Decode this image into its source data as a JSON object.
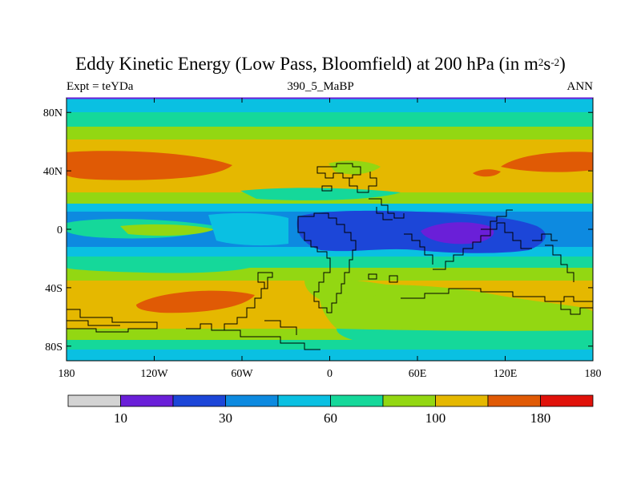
{
  "title": {
    "main": "Eddy Kinetic Energy (Low Pass, Bloomfield) at 200 hPa (in m",
    "sup1": "2",
    "mid": "s",
    "sup2": "-2",
    "end": ")"
  },
  "subtitle": {
    "left": "Expt = teYDa",
    "center": "390_5_MaBP",
    "right": "ANN"
  },
  "axes": {
    "lat_ticks": [
      {
        "lat": 80,
        "label": "80N"
      },
      {
        "lat": 40,
        "label": "40N"
      },
      {
        "lat": 0,
        "label": "0"
      },
      {
        "lat": -40,
        "label": "40S"
      },
      {
        "lat": -80,
        "label": "80S"
      }
    ],
    "lon_ticks": [
      {
        "lon": -180,
        "label": "180"
      },
      {
        "lon": -120,
        "label": "120W"
      },
      {
        "lon": -60,
        "label": "60W"
      },
      {
        "lon": 0,
        "label": "0"
      },
      {
        "lon": 60,
        "label": "60E"
      },
      {
        "lon": 120,
        "label": "120E"
      },
      {
        "lon": 180,
        "label": "180"
      }
    ]
  },
  "colorbar": {
    "colors": [
      "#d3d3d3",
      "#6a1fd8",
      "#1c46d8",
      "#0d8ae0",
      "#0ac0e2",
      "#15d89a",
      "#93d712",
      "#e5b800",
      "#e05a05",
      "#e0120a"
    ],
    "labels": [
      {
        "boundary": 1,
        "text": "10"
      },
      {
        "boundary": 3,
        "text": "30"
      },
      {
        "boundary": 5,
        "text": "60"
      },
      {
        "boundary": 7,
        "text": "100"
      },
      {
        "boundary": 9,
        "text": "180"
      }
    ]
  },
  "field_colors": {
    "band_lightblue": "#0ac0e2",
    "band_blue": "#0d8ae0",
    "band_green": "#15d89a",
    "band_yellowgreen": "#93d712",
    "band_gold": "#e5b800",
    "band_orange": "#e05a05",
    "band_deepblue": "#1c46d8",
    "band_purple": "#6a1fd8",
    "frame_top": "#6a1fd8",
    "coastline": "#000000"
  }
}
